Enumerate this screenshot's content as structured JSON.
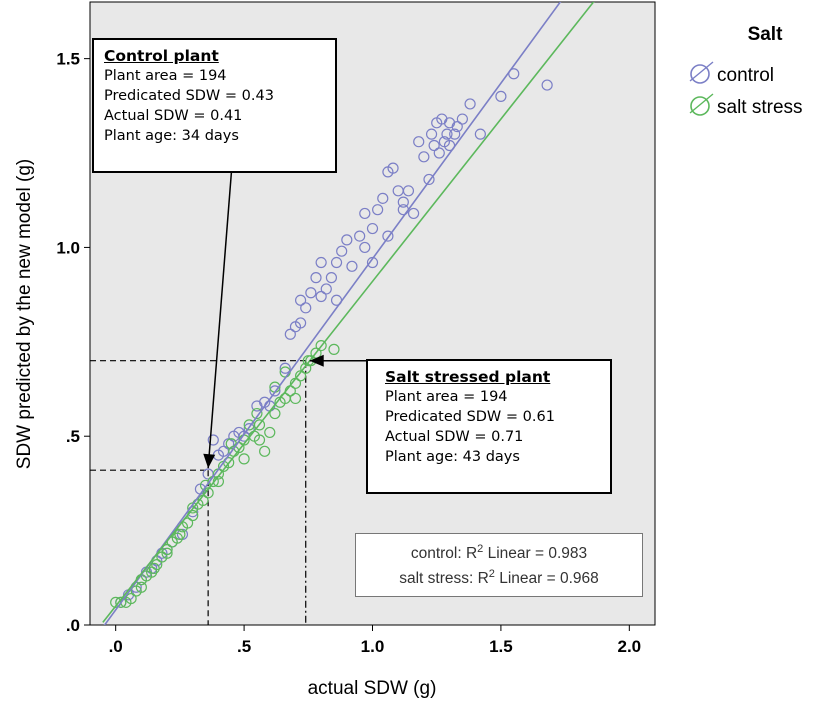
{
  "chart_data": {
    "type": "scatter",
    "xlabel": "actual SDW (g)",
    "ylabel": "SDW predicted by the new model (g)",
    "xlim": [
      -0.1,
      2.1
    ],
    "ylim": [
      0.0,
      1.65
    ],
    "xticks": [
      {
        "value": 0.0,
        "label": ".0"
      },
      {
        "value": 0.5,
        "label": ".5"
      },
      {
        "value": 1.0,
        "label": "1.0"
      },
      {
        "value": 1.5,
        "label": "1.5"
      },
      {
        "value": 2.0,
        "label": "2.0"
      }
    ],
    "yticks": [
      {
        "value": 0.0,
        "label": ".0"
      },
      {
        "value": 0.5,
        "label": ".5"
      },
      {
        "value": 1.0,
        "label": "1.0"
      },
      {
        "value": 1.5,
        "label": "1.5"
      }
    ],
    "grid": false,
    "legend": {
      "title": "Salt",
      "position": "right"
    },
    "series": [
      {
        "name": "control",
        "color": "#7b7fc6",
        "fit": {
          "slope": 0.93,
          "intercept": 0.04
        },
        "points": [
          [
            0.02,
            0.06
          ],
          [
            0.05,
            0.08
          ],
          [
            0.08,
            0.1
          ],
          [
            0.1,
            0.12
          ],
          [
            0.12,
            0.14
          ],
          [
            0.14,
            0.15
          ],
          [
            0.16,
            0.17
          ],
          [
            0.18,
            0.19
          ],
          [
            0.2,
            0.2
          ],
          [
            0.22,
            0.22
          ],
          [
            0.26,
            0.24
          ],
          [
            0.3,
            0.3
          ],
          [
            0.33,
            0.36
          ],
          [
            0.36,
            0.4
          ],
          [
            0.38,
            0.49
          ],
          [
            0.4,
            0.45
          ],
          [
            0.42,
            0.46
          ],
          [
            0.44,
            0.48
          ],
          [
            0.46,
            0.5
          ],
          [
            0.48,
            0.51
          ],
          [
            0.5,
            0.5
          ],
          [
            0.52,
            0.52
          ],
          [
            0.55,
            0.58
          ],
          [
            0.58,
            0.59
          ],
          [
            0.6,
            0.58
          ],
          [
            0.62,
            0.62
          ],
          [
            0.66,
            0.68
          ],
          [
            0.68,
            0.77
          ],
          [
            0.7,
            0.79
          ],
          [
            0.72,
            0.8
          ],
          [
            0.72,
            0.86
          ],
          [
            0.74,
            0.84
          ],
          [
            0.76,
            0.88
          ],
          [
            0.78,
            0.92
          ],
          [
            0.8,
            0.87
          ],
          [
            0.8,
            0.96
          ],
          [
            0.82,
            0.89
          ],
          [
            0.84,
            0.92
          ],
          [
            0.86,
            0.86
          ],
          [
            0.86,
            0.96
          ],
          [
            0.88,
            0.99
          ],
          [
            0.9,
            1.02
          ],
          [
            0.92,
            0.95
          ],
          [
            0.95,
            1.03
          ],
          [
            0.97,
            1.09
          ],
          [
            1.0,
            1.05
          ],
          [
            1.02,
            1.1
          ],
          [
            1.04,
            1.13
          ],
          [
            1.06,
            1.2
          ],
          [
            1.08,
            1.21
          ],
          [
            1.1,
            1.15
          ],
          [
            1.12,
            1.12
          ],
          [
            1.14,
            1.15
          ],
          [
            1.16,
            1.09
          ],
          [
            1.18,
            1.28
          ],
          [
            1.2,
            1.24
          ],
          [
            1.22,
            1.18
          ],
          [
            1.23,
            1.3
          ],
          [
            1.25,
            1.33
          ],
          [
            1.27,
            1.34
          ],
          [
            1.28,
            1.28
          ],
          [
            1.3,
            1.27
          ],
          [
            1.32,
            1.3
          ],
          [
            1.33,
            1.32
          ],
          [
            1.35,
            1.34
          ],
          [
            1.38,
            1.38
          ],
          [
            1.42,
            1.3
          ],
          [
            1.5,
            1.4
          ],
          [
            1.55,
            1.46
          ],
          [
            1.68,
            1.43
          ],
          [
            0.97,
            1.0
          ],
          [
            1.0,
            0.96
          ],
          [
            1.06,
            1.03
          ],
          [
            1.12,
            1.1
          ],
          [
            1.24,
            1.27
          ],
          [
            1.26,
            1.25
          ],
          [
            1.29,
            1.3
          ],
          [
            1.3,
            1.33
          ]
        ]
      },
      {
        "name": "salt stress",
        "color": "#5cb85c",
        "fit": {
          "slope": 0.86,
          "intercept": 0.05
        },
        "points": [
          [
            0.0,
            0.06
          ],
          [
            0.02,
            0.06
          ],
          [
            0.04,
            0.06
          ],
          [
            0.06,
            0.07
          ],
          [
            0.08,
            0.09
          ],
          [
            0.1,
            0.12
          ],
          [
            0.12,
            0.13
          ],
          [
            0.14,
            0.14
          ],
          [
            0.16,
            0.16
          ],
          [
            0.18,
            0.18
          ],
          [
            0.2,
            0.2
          ],
          [
            0.22,
            0.22
          ],
          [
            0.24,
            0.23
          ],
          [
            0.26,
            0.26
          ],
          [
            0.28,
            0.27
          ],
          [
            0.3,
            0.29
          ],
          [
            0.32,
            0.32
          ],
          [
            0.34,
            0.33
          ],
          [
            0.36,
            0.35
          ],
          [
            0.38,
            0.38
          ],
          [
            0.4,
            0.4
          ],
          [
            0.42,
            0.42
          ],
          [
            0.44,
            0.43
          ],
          [
            0.46,
            0.46
          ],
          [
            0.48,
            0.47
          ],
          [
            0.5,
            0.49
          ],
          [
            0.52,
            0.53
          ],
          [
            0.54,
            0.5
          ],
          [
            0.56,
            0.53
          ],
          [
            0.58,
            0.46
          ],
          [
            0.6,
            0.51
          ],
          [
            0.62,
            0.56
          ],
          [
            0.64,
            0.59
          ],
          [
            0.66,
            0.6
          ],
          [
            0.68,
            0.62
          ],
          [
            0.7,
            0.64
          ],
          [
            0.72,
            0.66
          ],
          [
            0.74,
            0.68
          ],
          [
            0.76,
            0.7
          ],
          [
            0.78,
            0.72
          ],
          [
            0.55,
            0.56
          ],
          [
            0.5,
            0.44
          ],
          [
            0.45,
            0.48
          ],
          [
            0.4,
            0.38
          ],
          [
            0.35,
            0.37
          ],
          [
            0.3,
            0.31
          ],
          [
            0.25,
            0.24
          ],
          [
            0.2,
            0.19
          ],
          [
            0.15,
            0.15
          ],
          [
            0.1,
            0.1
          ],
          [
            0.56,
            0.49
          ],
          [
            0.62,
            0.63
          ],
          [
            0.66,
            0.67
          ],
          [
            0.7,
            0.6
          ],
          [
            0.75,
            0.7
          ],
          [
            0.8,
            0.74
          ],
          [
            0.85,
            0.73
          ]
        ]
      }
    ],
    "annotations": [
      {
        "name": "Control plant",
        "point": [
          0.36,
          0.41
        ],
        "arrow_from": [
          0.46,
          1.28
        ]
      },
      {
        "name": "Salt stressed plant",
        "point": [
          0.74,
          0.7
        ],
        "arrow_from": [
          1.02,
          0.7
        ]
      }
    ]
  },
  "legend": {
    "title": "Salt",
    "items": [
      {
        "label": "control",
        "color": "#7b7fc6"
      },
      {
        "label": "salt stress",
        "color": "#5cb85c"
      }
    ]
  },
  "control_box": {
    "heading": "Control plant",
    "line1": "Plant area = 194",
    "line2": "Predicated SDW = 0.43",
    "line3": "Actual SDW = 0.41",
    "line4": "Plant age: 34 days"
  },
  "salt_box": {
    "heading": "Salt stressed plant",
    "line1": "Plant area = 194",
    "line2": "Predicated SDW = 0.61",
    "line3": "Actual SDW = 0.71",
    "line4": "Plant age: 43 days"
  },
  "r2_box": {
    "control_prefix": "control: R",
    "control_suffix": " Linear = 0.983",
    "salt_prefix": "salt stress: R",
    "salt_suffix": " Linear = 0.968",
    "superscript": "2"
  }
}
